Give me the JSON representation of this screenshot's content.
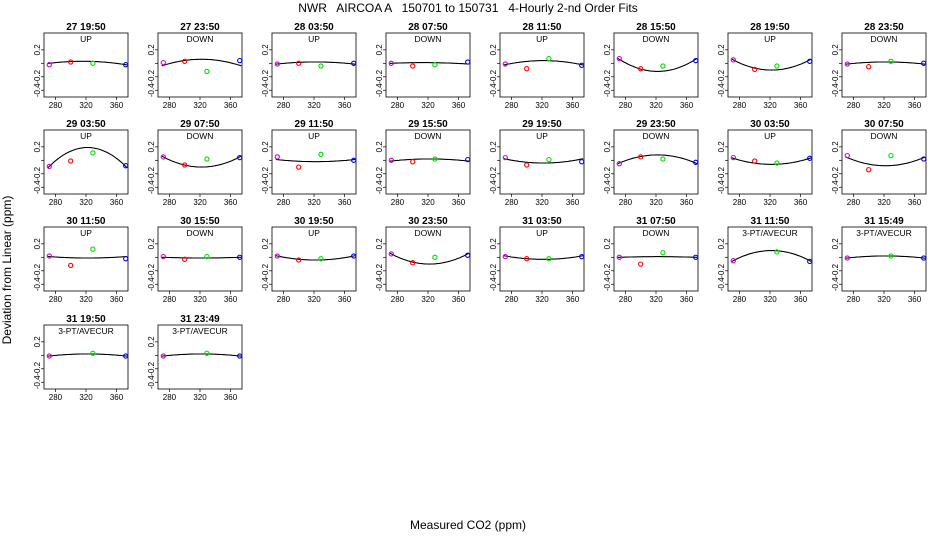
{
  "title": "NWR   AIRCOA A   150701 to 150731   4-Hourly 2-nd Order Fits",
  "xlabel": "Measured CO2 (ppm)",
  "ylabel": "Deviation from Linear (ppm)",
  "colors": {
    "low": "#cc00cc",
    "mid1": "#ff0000",
    "mid2": "#00dd00",
    "high": "#0000ff",
    "curve": "#000000"
  },
  "chart_data": {
    "type": "scatter",
    "xlim": [
      265,
      375
    ],
    "ylim": [
      -0.5,
      0.45
    ],
    "xticks": [
      280,
      320,
      360
    ],
    "yticks": [
      -0.4,
      -0.2,
      0.0,
      0.2
    ],
    "ytick_labels": [
      "-0.4",
      "-0.2",
      "",
      "0.2"
    ],
    "grid": false,
    "panels": [
      {
        "title": "27 19:50",
        "label": "UP",
        "points": [
          [
            272,
            -0.02
          ],
          [
            300,
            0.02
          ],
          [
            329,
            0.0
          ],
          [
            372,
            -0.02
          ]
        ],
        "curve": [
          0.0,
          0.03,
          -0.02
        ]
      },
      {
        "title": "27 23:50",
        "label": "DOWN",
        "points": [
          [
            272,
            0.01
          ],
          [
            300,
            0.03
          ],
          [
            329,
            -0.12
          ],
          [
            372,
            0.04
          ]
        ],
        "curve": [
          -0.03,
          0.06,
          -0.03
        ]
      },
      {
        "title": "28 03:50",
        "label": "UP",
        "points": [
          [
            272,
            -0.01
          ],
          [
            300,
            0.0
          ],
          [
            329,
            -0.04
          ],
          [
            372,
            0.0
          ]
        ],
        "curve": [
          -0.01,
          0.02,
          -0.01
        ]
      },
      {
        "title": "28 07:50",
        "label": "DOWN",
        "points": [
          [
            272,
            0.0
          ],
          [
            300,
            -0.04
          ],
          [
            329,
            -0.02
          ],
          [
            372,
            0.02
          ]
        ],
        "curve": [
          0.0,
          0.01,
          -0.01
        ]
      },
      {
        "title": "28 11:50",
        "label": "UP",
        "points": [
          [
            272,
            -0.01
          ],
          [
            300,
            -0.08
          ],
          [
            329,
            0.07
          ],
          [
            372,
            -0.03
          ]
        ],
        "curve": [
          -0.02,
          0.04,
          -0.02
        ]
      },
      {
        "title": "28 15:50",
        "label": "DOWN",
        "points": [
          [
            272,
            0.07
          ],
          [
            300,
            -0.08
          ],
          [
            329,
            -0.04
          ],
          [
            372,
            0.04
          ]
        ],
        "curve": [
          0.06,
          -0.12,
          0.06
        ]
      },
      {
        "title": "28 19:50",
        "label": "UP",
        "points": [
          [
            272,
            0.05
          ],
          [
            300,
            -0.09
          ],
          [
            329,
            -0.04
          ],
          [
            372,
            0.03
          ]
        ],
        "curve": [
          0.05,
          -0.1,
          0.05
        ]
      },
      {
        "title": "28 23:50",
        "label": "DOWN",
        "points": [
          [
            272,
            -0.01
          ],
          [
            300,
            -0.05
          ],
          [
            329,
            0.03
          ],
          [
            372,
            0.0
          ]
        ],
        "curve": [
          -0.01,
          0.02,
          -0.01
        ]
      },
      {
        "title": "29 03:50",
        "label": "UP",
        "points": [
          [
            272,
            -0.09
          ],
          [
            300,
            -0.01
          ],
          [
            329,
            0.11
          ],
          [
            372,
            -0.08
          ]
        ],
        "curve": [
          -0.09,
          0.19,
          -0.09
        ]
      },
      {
        "title": "29 07:50",
        "label": "DOWN",
        "points": [
          [
            272,
            0.05
          ],
          [
            300,
            -0.07
          ],
          [
            329,
            0.02
          ],
          [
            372,
            0.04
          ]
        ],
        "curve": [
          0.05,
          -0.1,
          0.05
        ]
      },
      {
        "title": "29 11:50",
        "label": "UP",
        "points": [
          [
            272,
            0.05
          ],
          [
            300,
            -0.1
          ],
          [
            329,
            0.09
          ],
          [
            372,
            0.0
          ]
        ],
        "curve": [
          0.01,
          -0.02,
          0.01
        ]
      },
      {
        "title": "29 15:50",
        "label": "DOWN",
        "points": [
          [
            272,
            0.0
          ],
          [
            300,
            -0.02
          ],
          [
            329,
            0.02
          ],
          [
            372,
            0.01
          ]
        ],
        "curve": [
          -0.01,
          0.02,
          -0.01
        ]
      },
      {
        "title": "29 19:50",
        "label": "UP",
        "points": [
          [
            272,
            0.04
          ],
          [
            300,
            -0.07
          ],
          [
            329,
            0.01
          ],
          [
            372,
            -0.02
          ]
        ],
        "curve": [
          0.02,
          -0.04,
          0.02
        ]
      },
      {
        "title": "29 23:50",
        "label": "DOWN",
        "points": [
          [
            272,
            -0.05
          ],
          [
            300,
            0.05
          ],
          [
            329,
            0.02
          ],
          [
            372,
            -0.03
          ]
        ],
        "curve": [
          -0.04,
          0.08,
          -0.04
        ]
      },
      {
        "title": "30 03:50",
        "label": "UP",
        "points": [
          [
            272,
            0.04
          ],
          [
            300,
            -0.01
          ],
          [
            329,
            -0.04
          ],
          [
            372,
            0.03
          ]
        ],
        "curve": [
          0.03,
          -0.06,
          0.03
        ]
      },
      {
        "title": "30 07:50",
        "label": "DOWN",
        "points": [
          [
            272,
            0.07
          ],
          [
            300,
            -0.14
          ],
          [
            329,
            0.07
          ],
          [
            372,
            0.02
          ]
        ],
        "curve": [
          0.04,
          -0.08,
          0.04
        ]
      },
      {
        "title": "30 11:50",
        "label": "UP",
        "points": [
          [
            272,
            0.02
          ],
          [
            300,
            -0.12
          ],
          [
            329,
            0.12
          ],
          [
            372,
            -0.02
          ]
        ],
        "curve": [
          0.01,
          -0.01,
          0.01
        ]
      },
      {
        "title": "30 15:50",
        "label": "DOWN",
        "points": [
          [
            272,
            0.01
          ],
          [
            300,
            -0.03
          ],
          [
            329,
            0.01
          ],
          [
            372,
            0.0
          ]
        ],
        "curve": [
          0.0,
          -0.01,
          0.0
        ]
      },
      {
        "title": "30 19:50",
        "label": "UP",
        "points": [
          [
            272,
            0.02
          ],
          [
            300,
            -0.04
          ],
          [
            329,
            -0.02
          ],
          [
            372,
            0.02
          ]
        ],
        "curve": [
          0.02,
          -0.04,
          0.02
        ]
      },
      {
        "title": "30 23:50",
        "label": "DOWN",
        "points": [
          [
            272,
            0.05
          ],
          [
            300,
            -0.08
          ],
          [
            329,
            0.0
          ],
          [
            372,
            0.03
          ]
        ],
        "curve": [
          0.05,
          -0.1,
          0.05
        ]
      },
      {
        "title": "31 03:50",
        "label": "UP",
        "points": [
          [
            272,
            0.01
          ],
          [
            300,
            -0.02
          ],
          [
            329,
            -0.02
          ],
          [
            372,
            0.01
          ]
        ],
        "curve": [
          0.02,
          -0.03,
          0.02
        ]
      },
      {
        "title": "31 07:50",
        "label": "DOWN",
        "points": [
          [
            272,
            0.0
          ],
          [
            300,
            -0.1
          ],
          [
            329,
            0.07
          ],
          [
            372,
            0.0
          ]
        ],
        "curve": [
          0.0,
          0.01,
          0.0
        ]
      },
      {
        "title": "31 11:50",
        "label": "3-PT/AVECUR",
        "points": [
          [
            272,
            -0.05
          ],
          [
            329,
            0.08
          ],
          [
            372,
            -0.06
          ]
        ],
        "curve": [
          -0.05,
          0.1,
          -0.05
        ]
      },
      {
        "title": "31 15:49",
        "label": "3-PT/AVECUR",
        "points": [
          [
            272,
            -0.01
          ],
          [
            329,
            0.02
          ],
          [
            372,
            -0.01
          ]
        ],
        "curve": [
          -0.01,
          0.02,
          -0.01
        ]
      },
      {
        "title": "31 19:50",
        "label": "3-PT/AVECUR",
        "points": [
          [
            272,
            -0.01
          ],
          [
            329,
            0.03
          ],
          [
            372,
            -0.01
          ]
        ],
        "curve": [
          -0.01,
          0.02,
          -0.01
        ]
      },
      {
        "title": "31 23:49",
        "label": "3-PT/AVECUR",
        "points": [
          [
            272,
            -0.01
          ],
          [
            329,
            0.03
          ],
          [
            372,
            -0.01
          ]
        ],
        "curve": [
          -0.01,
          0.02,
          -0.01
        ]
      }
    ]
  }
}
